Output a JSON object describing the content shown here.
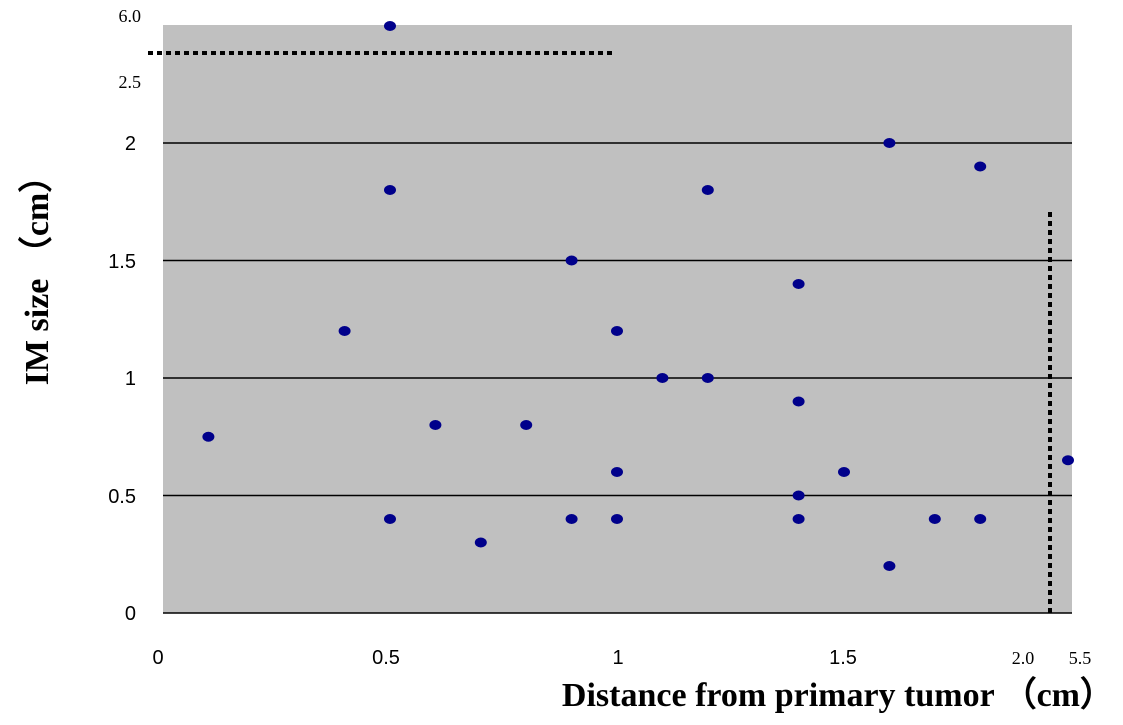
{
  "chart_data": {
    "type": "scatter",
    "title": "",
    "xlabel": "Distance from primary tumor （cm）",
    "ylabel": "IM size （cm）",
    "xlim": [
      0,
      2.0
    ],
    "ylim": [
      0,
      2.5
    ],
    "grid": true,
    "background_color": "#c0c0c0",
    "point_color": "#00008b",
    "x_ticks": [
      "0",
      "0.5",
      "1",
      "1.5",
      "2.0",
      "5.5"
    ],
    "y_ticks": [
      "0",
      "0.5",
      "1",
      "1.5",
      "2",
      "2.5",
      "6.0"
    ],
    "axis_breaks": {
      "x": "2.0 – 5.5",
      "y": "2.5 – 6.0"
    },
    "points": [
      {
        "x": 0.1,
        "y": 0.75
      },
      {
        "x": 0.4,
        "y": 1.2
      },
      {
        "x": 0.5,
        "y": 6.0
      },
      {
        "x": 0.5,
        "y": 1.8
      },
      {
        "x": 0.5,
        "y": 0.4
      },
      {
        "x": 0.6,
        "y": 0.8
      },
      {
        "x": 0.7,
        "y": 0.3
      },
      {
        "x": 0.8,
        "y": 0.8
      },
      {
        "x": 0.9,
        "y": 1.5
      },
      {
        "x": 0.9,
        "y": 0.4
      },
      {
        "x": 1.0,
        "y": 1.2
      },
      {
        "x": 1.0,
        "y": 0.6
      },
      {
        "x": 1.0,
        "y": 0.4
      },
      {
        "x": 1.1,
        "y": 1.0
      },
      {
        "x": 1.2,
        "y": 1.8
      },
      {
        "x": 1.2,
        "y": 1.0
      },
      {
        "x": 1.4,
        "y": 1.4
      },
      {
        "x": 1.4,
        "y": 0.9
      },
      {
        "x": 1.4,
        "y": 0.5
      },
      {
        "x": 1.4,
        "y": 0.4
      },
      {
        "x": 1.5,
        "y": 0.6
      },
      {
        "x": 1.6,
        "y": 2.0
      },
      {
        "x": 1.6,
        "y": 0.2
      },
      {
        "x": 1.7,
        "y": 0.4
      },
      {
        "x": 1.8,
        "y": 1.9
      },
      {
        "x": 1.8,
        "y": 0.4
      },
      {
        "x": 5.5,
        "y": 0.65
      }
    ]
  }
}
